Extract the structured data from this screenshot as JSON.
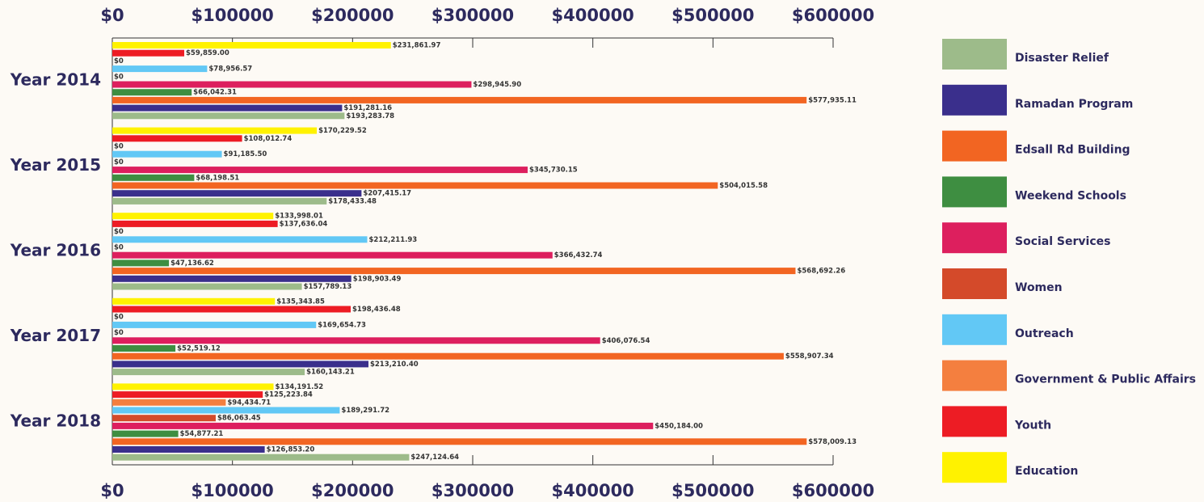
{
  "chart_data": {
    "type": "bar",
    "orientation": "horizontal",
    "categories": [
      "Year 2014",
      "Year 2015",
      "Year 2016",
      "Year 2017",
      "Year 2018"
    ],
    "xlim": [
      0,
      600000
    ],
    "xticks": [
      {
        "value": 0,
        "label": "$0"
      },
      {
        "value": 100000,
        "label": "$100000"
      },
      {
        "value": 200000,
        "label": "$200000"
      },
      {
        "value": 300000,
        "label": "$300000"
      },
      {
        "value": 400000,
        "label": "$400000"
      },
      {
        "value": 500000,
        "label": "$500000"
      },
      {
        "value": 600000,
        "label": "$600000"
      }
    ],
    "legend": "right",
    "series": [
      {
        "name": "Disaster Relief",
        "color": "#9dbb8a",
        "values": [
          193283.78,
          178433.48,
          157789.13,
          160143.21,
          247124.64
        ],
        "value_labels": [
          "$193,283.78",
          "$178,433.48",
          "$157,789.13",
          "$160,143.21",
          "$247,124.64"
        ]
      },
      {
        "name": "Ramadan Program",
        "color": "#3a2f8c",
        "values": [
          191281.16,
          207415.17,
          198903.49,
          213210.4,
          126853.2
        ],
        "value_labels": [
          "$191,281.16",
          "$207,415.17",
          "$198,903.49",
          "$213,210.40",
          "$126,853.20"
        ]
      },
      {
        "name": "Edsall Rd Building",
        "color": "#f26522",
        "values": [
          577935.11,
          504015.58,
          568692.26,
          558907.34,
          578009.13
        ],
        "value_labels": [
          "$577,935.11",
          "$504,015.58",
          "$568,692.26",
          "$558,907.34",
          "$578,009.13"
        ]
      },
      {
        "name": "Weekend Schools",
        "color": "#3e8e41",
        "values": [
          66042.31,
          68198.51,
          47136.62,
          52519.12,
          54877.21
        ],
        "value_labels": [
          "$66,042.31",
          "$68,198.51",
          "$47,136.62",
          "$52,519.12",
          "$54,877.21"
        ]
      },
      {
        "name": "Social Services",
        "color": "#dd1f5e",
        "values": [
          298945.9,
          345730.15,
          366432.74,
          406076.54,
          450184.0
        ],
        "value_labels": [
          "$298,945.90",
          "$345,730.15",
          "$366,432.74",
          "$406,076.54",
          "$450,184.00"
        ]
      },
      {
        "name": "Women",
        "color": "#d44a2a",
        "values": [
          0,
          0,
          0,
          0,
          86063.45
        ],
        "value_labels": [
          "$0",
          "$0",
          "$0",
          "$0",
          "$86,063.45"
        ]
      },
      {
        "name": "Outreach",
        "color": "#62c8f5",
        "values": [
          78956.57,
          91185.5,
          212211.93,
          169654.73,
          189291.72
        ],
        "value_labels": [
          "$78,956.57",
          "$91,185.50",
          "$212,211.93",
          "$169,654.73",
          "$189,291.72"
        ]
      },
      {
        "name": "Government & Public Affairs",
        "color": "#f47f3f",
        "values": [
          0,
          0,
          0,
          0,
          94434.71
        ],
        "value_labels": [
          "$0",
          "$0",
          "$0",
          "$0",
          "$94,434.71"
        ]
      },
      {
        "name": "Youth",
        "color": "#ed1c24",
        "values": [
          59859.0,
          108012.74,
          137636.04,
          198436.48,
          125223.84
        ],
        "value_labels": [
          "$59,859.00",
          "$108,012.74",
          "$137,636.04",
          "$198,436.48",
          "$125,223.84"
        ]
      },
      {
        "name": "Education",
        "color": "#fff200",
        "values": [
          231861.97,
          170229.52,
          133998.01,
          135343.85,
          134191.52
        ],
        "value_labels": [
          "$231,861.97",
          "$170,229.52",
          "$133,998.01",
          "$135,343.85",
          "$134,191.52"
        ]
      }
    ]
  }
}
